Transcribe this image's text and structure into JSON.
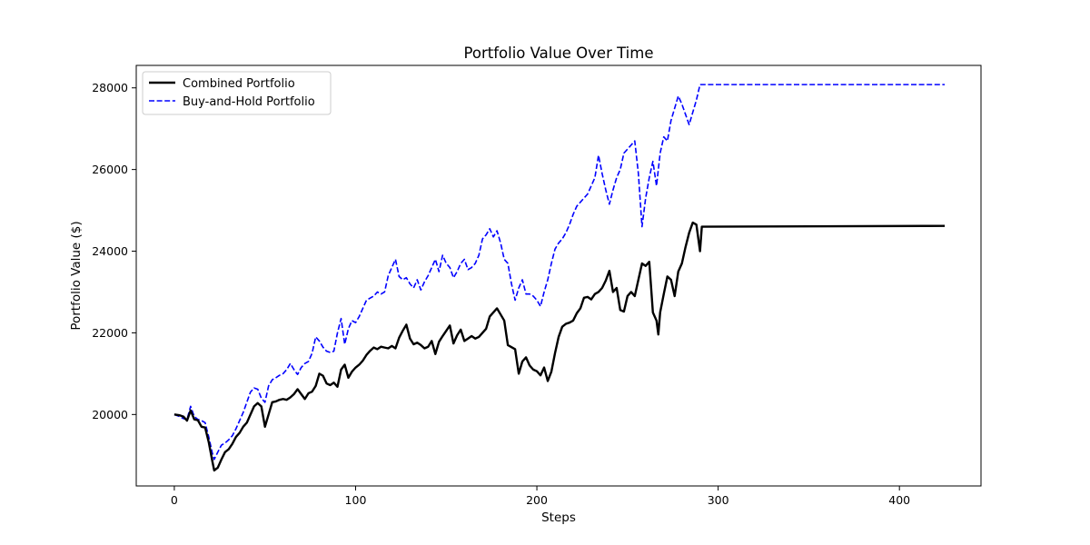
{
  "chart_data": {
    "type": "line",
    "title": "Portfolio Value Over Time",
    "xlabel": "Steps",
    "ylabel": "Portfolio Value ($)",
    "xlim": [
      -21,
      445
    ],
    "ylim": [
      18250,
      28550
    ],
    "xticks": [
      0,
      100,
      200,
      300,
      400
    ],
    "yticks": [
      20000,
      22000,
      24000,
      26000,
      28000
    ],
    "grid": false,
    "legend_position": "top-left",
    "series": [
      {
        "name": "Combined Portfolio",
        "color": "#000000",
        "style": "solid",
        "points": [
          [
            0,
            20000
          ],
          [
            3,
            19980
          ],
          [
            5,
            19950
          ],
          [
            7,
            19850
          ],
          [
            9,
            20100
          ],
          [
            11,
            19880
          ],
          [
            13,
            19860
          ],
          [
            15,
            19700
          ],
          [
            17,
            19680
          ],
          [
            19,
            19320
          ],
          [
            21,
            18850
          ],
          [
            22,
            18630
          ],
          [
            24,
            18700
          ],
          [
            26,
            18900
          ],
          [
            28,
            19080
          ],
          [
            30,
            19150
          ],
          [
            32,
            19280
          ],
          [
            34,
            19450
          ],
          [
            36,
            19550
          ],
          [
            38,
            19700
          ],
          [
            40,
            19800
          ],
          [
            42,
            20000
          ],
          [
            44,
            20200
          ],
          [
            46,
            20280
          ],
          [
            48,
            20200
          ],
          [
            50,
            19700
          ],
          [
            52,
            20000
          ],
          [
            54,
            20300
          ],
          [
            56,
            20320
          ],
          [
            58,
            20360
          ],
          [
            60,
            20380
          ],
          [
            62,
            20360
          ],
          [
            64,
            20420
          ],
          [
            66,
            20500
          ],
          [
            68,
            20620
          ],
          [
            70,
            20500
          ],
          [
            72,
            20380
          ],
          [
            74,
            20520
          ],
          [
            76,
            20560
          ],
          [
            78,
            20700
          ],
          [
            80,
            21000
          ],
          [
            82,
            20950
          ],
          [
            84,
            20760
          ],
          [
            86,
            20720
          ],
          [
            88,
            20780
          ],
          [
            90,
            20680
          ],
          [
            92,
            21100
          ],
          [
            94,
            21220
          ],
          [
            96,
            20900
          ],
          [
            98,
            21050
          ],
          [
            100,
            21150
          ],
          [
            102,
            21220
          ],
          [
            104,
            21320
          ],
          [
            106,
            21460
          ],
          [
            108,
            21560
          ],
          [
            110,
            21640
          ],
          [
            112,
            21600
          ],
          [
            114,
            21660
          ],
          [
            116,
            21640
          ],
          [
            118,
            21620
          ],
          [
            120,
            21680
          ],
          [
            122,
            21620
          ],
          [
            124,
            21880
          ],
          [
            126,
            22050
          ],
          [
            128,
            22200
          ],
          [
            130,
            21860
          ],
          [
            132,
            21720
          ],
          [
            134,
            21760
          ],
          [
            136,
            21700
          ],
          [
            138,
            21620
          ],
          [
            140,
            21660
          ],
          [
            142,
            21800
          ],
          [
            144,
            21480
          ],
          [
            146,
            21780
          ],
          [
            148,
            21920
          ],
          [
            150,
            22050
          ],
          [
            152,
            22180
          ],
          [
            154,
            21740
          ],
          [
            156,
            21940
          ],
          [
            158,
            22080
          ],
          [
            160,
            21800
          ],
          [
            162,
            21860
          ],
          [
            164,
            21920
          ],
          [
            166,
            21860
          ],
          [
            168,
            21900
          ],
          [
            170,
            22000
          ],
          [
            172,
            22100
          ],
          [
            174,
            22400
          ],
          [
            176,
            22500
          ],
          [
            178,
            22600
          ],
          [
            180,
            22450
          ],
          [
            182,
            22300
          ],
          [
            184,
            21700
          ],
          [
            186,
            21650
          ],
          [
            188,
            21600
          ],
          [
            190,
            21000
          ],
          [
            192,
            21300
          ],
          [
            194,
            21400
          ],
          [
            196,
            21200
          ],
          [
            198,
            21100
          ],
          [
            200,
            21060
          ],
          [
            202,
            20960
          ],
          [
            204,
            21150
          ],
          [
            206,
            20820
          ],
          [
            208,
            21050
          ],
          [
            210,
            21500
          ],
          [
            212,
            21900
          ],
          [
            214,
            22150
          ],
          [
            216,
            22220
          ],
          [
            218,
            22250
          ],
          [
            220,
            22300
          ],
          [
            222,
            22480
          ],
          [
            224,
            22600
          ],
          [
            226,
            22860
          ],
          [
            228,
            22880
          ],
          [
            230,
            22820
          ],
          [
            232,
            22950
          ],
          [
            234,
            23000
          ],
          [
            236,
            23100
          ],
          [
            238,
            23280
          ],
          [
            240,
            23520
          ],
          [
            242,
            23000
          ],
          [
            244,
            23100
          ],
          [
            246,
            22560
          ],
          [
            248,
            22520
          ],
          [
            250,
            22900
          ],
          [
            252,
            23000
          ],
          [
            254,
            22900
          ],
          [
            256,
            23300
          ],
          [
            258,
            23700
          ],
          [
            260,
            23640
          ],
          [
            262,
            23740
          ],
          [
            264,
            22500
          ],
          [
            266,
            22300
          ],
          [
            267,
            21960
          ],
          [
            268,
            22500
          ],
          [
            270,
            22950
          ],
          [
            272,
            23380
          ],
          [
            274,
            23300
          ],
          [
            276,
            22900
          ],
          [
            278,
            23500
          ],
          [
            280,
            23700
          ],
          [
            282,
            24100
          ],
          [
            284,
            24450
          ],
          [
            286,
            24700
          ],
          [
            288,
            24650
          ],
          [
            290,
            24000
          ],
          [
            291,
            24600
          ],
          [
            425,
            24620
          ]
        ]
      },
      {
        "name": "Buy-and-Hold Portfolio",
        "color": "#0000ff",
        "style": "dashed",
        "points": [
          [
            0,
            20000
          ],
          [
            3,
            19950
          ],
          [
            5,
            19900
          ],
          [
            7,
            19880
          ],
          [
            9,
            20200
          ],
          [
            11,
            19950
          ],
          [
            13,
            19880
          ],
          [
            15,
            19850
          ],
          [
            17,
            19800
          ],
          [
            19,
            19450
          ],
          [
            21,
            19050
          ],
          [
            22,
            18900
          ],
          [
            24,
            19080
          ],
          [
            26,
            19250
          ],
          [
            28,
            19300
          ],
          [
            30,
            19380
          ],
          [
            32,
            19480
          ],
          [
            34,
            19650
          ],
          [
            36,
            19850
          ],
          [
            38,
            20050
          ],
          [
            40,
            20300
          ],
          [
            42,
            20550
          ],
          [
            44,
            20650
          ],
          [
            46,
            20620
          ],
          [
            48,
            20400
          ],
          [
            50,
            20300
          ],
          [
            52,
            20700
          ],
          [
            54,
            20850
          ],
          [
            56,
            20900
          ],
          [
            58,
            20960
          ],
          [
            60,
            21000
          ],
          [
            62,
            21100
          ],
          [
            64,
            21250
          ],
          [
            66,
            21100
          ],
          [
            68,
            20980
          ],
          [
            70,
            21150
          ],
          [
            72,
            21250
          ],
          [
            74,
            21300
          ],
          [
            76,
            21500
          ],
          [
            78,
            21900
          ],
          [
            80,
            21800
          ],
          [
            82,
            21650
          ],
          [
            84,
            21550
          ],
          [
            86,
            21520
          ],
          [
            88,
            21550
          ],
          [
            90,
            22000
          ],
          [
            92,
            22350
          ],
          [
            94,
            21720
          ],
          [
            96,
            22100
          ],
          [
            98,
            22300
          ],
          [
            100,
            22250
          ],
          [
            102,
            22400
          ],
          [
            104,
            22600
          ],
          [
            106,
            22800
          ],
          [
            108,
            22850
          ],
          [
            110,
            22900
          ],
          [
            112,
            23000
          ],
          [
            114,
            22950
          ],
          [
            116,
            23000
          ],
          [
            118,
            23400
          ],
          [
            120,
            23600
          ],
          [
            122,
            23800
          ],
          [
            124,
            23380
          ],
          [
            126,
            23300
          ],
          [
            128,
            23350
          ],
          [
            130,
            23200
          ],
          [
            132,
            23100
          ],
          [
            134,
            23300
          ],
          [
            136,
            23050
          ],
          [
            138,
            23250
          ],
          [
            140,
            23400
          ],
          [
            142,
            23600
          ],
          [
            144,
            23800
          ],
          [
            146,
            23500
          ],
          [
            148,
            23900
          ],
          [
            150,
            23700
          ],
          [
            152,
            23600
          ],
          [
            154,
            23350
          ],
          [
            156,
            23500
          ],
          [
            158,
            23700
          ],
          [
            160,
            23800
          ],
          [
            162,
            23550
          ],
          [
            164,
            23600
          ],
          [
            166,
            23700
          ],
          [
            168,
            23900
          ],
          [
            170,
            24300
          ],
          [
            172,
            24400
          ],
          [
            174,
            24550
          ],
          [
            176,
            24350
          ],
          [
            178,
            24500
          ],
          [
            180,
            24200
          ],
          [
            182,
            23800
          ],
          [
            184,
            23700
          ],
          [
            186,
            23200
          ],
          [
            188,
            22800
          ],
          [
            190,
            23100
          ],
          [
            192,
            23300
          ],
          [
            194,
            22950
          ],
          [
            196,
            22950
          ],
          [
            198,
            22900
          ],
          [
            200,
            22800
          ],
          [
            202,
            22650
          ],
          [
            204,
            23000
          ],
          [
            206,
            23300
          ],
          [
            208,
            23700
          ],
          [
            210,
            24050
          ],
          [
            212,
            24200
          ],
          [
            214,
            24300
          ],
          [
            216,
            24450
          ],
          [
            218,
            24650
          ],
          [
            220,
            24900
          ],
          [
            222,
            25100
          ],
          [
            224,
            25200
          ],
          [
            226,
            25300
          ],
          [
            228,
            25400
          ],
          [
            230,
            25600
          ],
          [
            232,
            25800
          ],
          [
            234,
            26350
          ],
          [
            236,
            25900
          ],
          [
            238,
            25500
          ],
          [
            240,
            25150
          ],
          [
            242,
            25500
          ],
          [
            244,
            25800
          ],
          [
            246,
            26000
          ],
          [
            248,
            26400
          ],
          [
            250,
            26500
          ],
          [
            252,
            26600
          ],
          [
            254,
            26700
          ],
          [
            256,
            25900
          ],
          [
            258,
            24600
          ],
          [
            260,
            25300
          ],
          [
            262,
            25800
          ],
          [
            264,
            26200
          ],
          [
            266,
            25600
          ],
          [
            268,
            26400
          ],
          [
            270,
            26800
          ],
          [
            272,
            26700
          ],
          [
            274,
            27200
          ],
          [
            276,
            27500
          ],
          [
            278,
            27800
          ],
          [
            280,
            27600
          ],
          [
            282,
            27350
          ],
          [
            284,
            27100
          ],
          [
            286,
            27400
          ],
          [
            288,
            27700
          ],
          [
            290,
            28080
          ],
          [
            425,
            28080
          ]
        ]
      }
    ]
  }
}
